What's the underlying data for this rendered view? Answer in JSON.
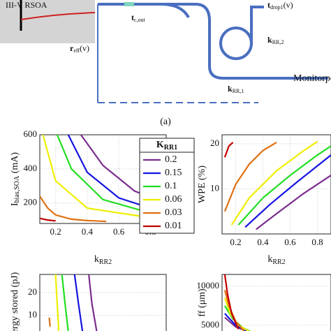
{
  "figure": {
    "panel_label": "(a)",
    "diagram": {
      "rsoa": "III-V RSOA",
      "r_eff": {
        "main": "r",
        "sub": "eff",
        "tail": "(v)"
      },
      "t_cout": {
        "main": "t",
        "sub": "c,out"
      },
      "t_drop": {
        "main": "t",
        "sub": "drop1",
        "tail": "(v)"
      },
      "k_rr2": {
        "main": "k",
        "sub": "RR,2"
      },
      "k_rr1": {
        "main": "k",
        "sub": "RR,1"
      },
      "monitor": "Monitorport"
    }
  },
  "chart_data": [
    {
      "type": "line",
      "ylabel": {
        "main": "I",
        "sub": "bias,SOA",
        "tail": " (mA)"
      },
      "xlabel": {
        "main": "k",
        "sub": "RR2"
      },
      "xlim": [
        0.1,
        0.9
      ],
      "ylim": [
        80,
        600
      ],
      "xticks": [
        0.2,
        0.4,
        0.6,
        0.8
      ],
      "yticks": [
        200,
        400,
        600
      ],
      "grid": true,
      "legend": {
        "title": {
          "main": "K",
          "sub": "RR1"
        },
        "position": "upper right"
      },
      "series": [
        {
          "name": "0.2",
          "color": "#7b2d8e",
          "x": [
            0.36,
            0.5,
            0.7,
            0.9
          ],
          "values": [
            600,
            420,
            270,
            200
          ]
        },
        {
          "name": "0.15",
          "color": "#1414e0",
          "x": [
            0.28,
            0.4,
            0.6,
            0.9
          ],
          "values": [
            600,
            380,
            230,
            140
          ]
        },
        {
          "name": "0.1",
          "color": "#22dd22",
          "x": [
            0.21,
            0.3,
            0.5,
            0.9
          ],
          "values": [
            600,
            400,
            220,
            115
          ]
        },
        {
          "name": "0.06",
          "color": "#eeee00",
          "x": [
            0.12,
            0.2,
            0.4,
            0.9
          ],
          "values": [
            600,
            330,
            170,
            100
          ]
        },
        {
          "name": "0.03",
          "color": "#e07010",
          "x": [
            0.1,
            0.15,
            0.2,
            0.3,
            0.4,
            0.52
          ],
          "values": [
            240,
            170,
            130,
            105,
            97,
            92
          ]
        },
        {
          "name": "0.01",
          "color": "#c00000",
          "x": [
            0.1,
            0.15,
            0.2
          ],
          "values": [
            110,
            100,
            95
          ]
        }
      ]
    },
    {
      "type": "line",
      "ylabel": {
        "main": "WPE (%)"
      },
      "xlabel": {
        "main": "k",
        "sub": "RR2"
      },
      "xlim": [
        0.1,
        0.9
      ],
      "ylim": [
        0,
        22
      ],
      "xticks": [
        0.2,
        0.4,
        0.6,
        0.8
      ],
      "yticks": [
        10,
        20
      ],
      "grid": true,
      "series": [
        {
          "color": "#7b2d8e",
          "x": [
            0.35,
            0.5,
            0.7,
            0.9
          ],
          "values": [
            1,
            4.5,
            9,
            13
          ]
        },
        {
          "color": "#1414e0",
          "x": [
            0.27,
            0.45,
            0.65,
            0.9
          ],
          "values": [
            1.5,
            6.5,
            11.5,
            17.5
          ]
        },
        {
          "color": "#22dd22",
          "x": [
            0.22,
            0.4,
            0.6,
            0.8,
            0.9
          ],
          "values": [
            2,
            8,
            13,
            17.5,
            19.5
          ]
        },
        {
          "color": "#eeee00",
          "x": [
            0.17,
            0.3,
            0.5,
            0.7,
            0.8
          ],
          "values": [
            2,
            8,
            14,
            18.5,
            20.5
          ]
        },
        {
          "color": "#e07010",
          "x": [
            0.12,
            0.2,
            0.3,
            0.4,
            0.5
          ],
          "values": [
            5,
            11,
            15.5,
            18.5,
            20.3
          ]
        },
        {
          "color": "#c00000",
          "x": [
            0.12,
            0.15,
            0.18
          ],
          "values": [
            17,
            19.5,
            20.3
          ]
        }
      ]
    },
    {
      "type": "line",
      "ylabel": {
        "main": "ergy stored (pJ)"
      },
      "xlim": [
        0.1,
        0.9
      ],
      "ylim": [
        0,
        28
      ],
      "yticks": [
        10,
        20
      ],
      "grid": true,
      "series": [
        {
          "color": "#7b2d8e",
          "x": [
            0.41,
            0.43,
            0.46
          ],
          "values": [
            28,
            15,
            3
          ]
        },
        {
          "color": "#1414e0",
          "x": [
            0.32,
            0.345,
            0.37
          ],
          "values": [
            28,
            15,
            3
          ]
        },
        {
          "color": "#22dd22",
          "x": [
            0.24,
            0.26,
            0.28
          ],
          "values": [
            28,
            15,
            3
          ]
        },
        {
          "color": "#eeee00",
          "x": [
            0.2,
            0.21,
            0.22
          ],
          "values": [
            28,
            15,
            3
          ]
        },
        {
          "color": "#e07010",
          "x": [
            0.16,
            0.165
          ],
          "values": [
            9,
            5
          ]
        }
      ]
    },
    {
      "type": "line",
      "ylabel": {
        "main": "ff (μm)"
      },
      "xlim": [
        0.1,
        0.9
      ],
      "ylim": [
        4000,
        11500
      ],
      "yticks": [
        5000,
        10000
      ],
      "grid": true,
      "series": [
        {
          "color": "#7b2d8e",
          "x": [
            0.12,
            0.2,
            0.3
          ],
          "values": [
            6000,
            4800,
            4100
          ]
        },
        {
          "color": "#1414e0",
          "x": [
            0.12,
            0.2,
            0.28
          ],
          "values": [
            6500,
            5000,
            4300
          ]
        },
        {
          "color": "#22dd22",
          "x": [
            0.12,
            0.18,
            0.25,
            0.32
          ],
          "values": [
            7500,
            5800,
            4700,
            4100
          ]
        },
        {
          "color": "#eeee00",
          "x": [
            0.12,
            0.16,
            0.22,
            0.3
          ],
          "values": [
            8500,
            6500,
            5000,
            4200
          ]
        },
        {
          "color": "#e07010",
          "x": [
            0.12,
            0.15,
            0.2,
            0.26
          ],
          "values": [
            9500,
            7500,
            5500,
            4300
          ]
        },
        {
          "color": "#c00000",
          "x": [
            0.12,
            0.14,
            0.17,
            0.22
          ],
          "values": [
            11500,
            9000,
            6500,
            4500
          ]
        }
      ]
    }
  ]
}
